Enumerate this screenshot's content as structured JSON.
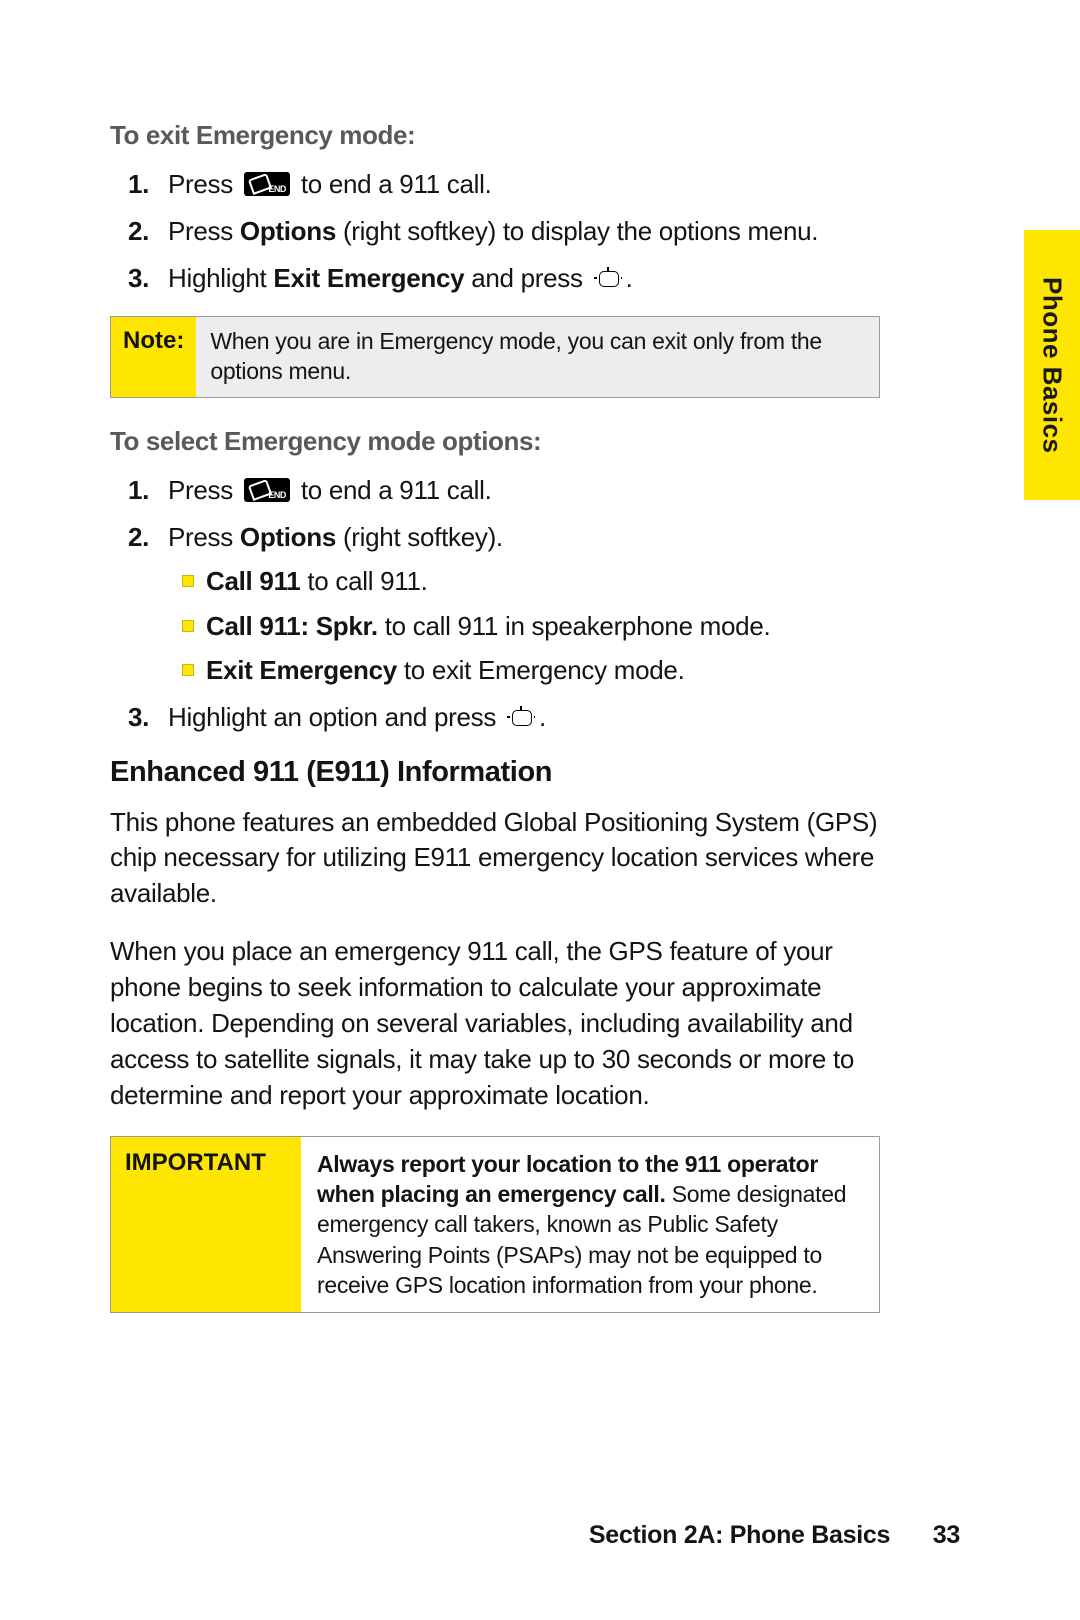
{
  "sideTab": "Phone Basics",
  "section1": {
    "heading": "To exit Emergency mode:",
    "steps": {
      "s1a": "Press ",
      "s1b": " to end a 911 call.",
      "s2a": "Press ",
      "s2bold": "Options",
      "s2b": " (right softkey) to display the options menu.",
      "s3a": "Highlight ",
      "s3bold": "Exit Emergency",
      "s3b": " and press ",
      "s3c": "."
    }
  },
  "note": {
    "label": "Note:",
    "body": "When you are in Emergency mode, you can exit only from the options menu."
  },
  "section2": {
    "heading": "To select Emergency mode options:",
    "steps": {
      "s1a": "Press ",
      "s1b": " to end a 911 call.",
      "s2a": "Press ",
      "s2bold": "Options",
      "s2b": " (right softkey).",
      "s3a": "Highlight an option and press ",
      "s3b": "."
    },
    "bullets": {
      "b1bold": "Call 911",
      "b1": " to call 911.",
      "b2bold": "Call 911: Spkr.",
      "b2": " to call 911 in speakerphone mode.",
      "b3bold": "Exit Emergency",
      "b3": " to exit Emergency mode."
    }
  },
  "e911": {
    "heading": "Enhanced 911 (E911) Information",
    "p1": "This phone features an embedded Global Positioning System (GPS) chip necessary for utilizing E911 emergency location services where available.",
    "p2": "When you place an emergency 911 call, the GPS feature of your phone begins to seek information to calculate your approximate location. Depending on several variables, including availability and access to satellite signals, it may take up to 30 seconds or more to determine and report your approximate location."
  },
  "important": {
    "label": "IMPORTANT",
    "bold": "Always report your location to the 911 operator when placing an emergency call.",
    "rest": " Some designated emergency call takers, known as Public Safety Answering Points (PSAPs) may not be equipped to receive GPS location information from your phone."
  },
  "footer": {
    "section": "Section 2A: Phone Basics",
    "page": "33"
  }
}
